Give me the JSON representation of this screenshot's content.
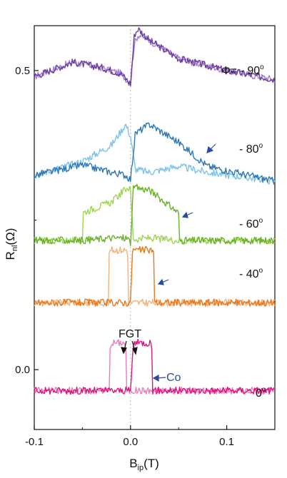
{
  "chart_data": {
    "type": "line",
    "title": "",
    "xlabel": {
      "main": "B",
      "sub": "ip",
      "unit": "(T)"
    },
    "ylabel": {
      "main": "R",
      "sub": "nl",
      "unit": "(Ω)"
    },
    "xlim": [
      -0.1,
      0.15
    ],
    "ylim": [
      -0.1,
      0.575
    ],
    "x_ticks": [
      "-0.1",
      "0.0",
      "0.1"
    ],
    "x_tick_values": [
      -0.1,
      0.0,
      0.1
    ],
    "y_ticks": [
      "0.0",
      "0.5"
    ],
    "y_tick_values": [
      0.0,
      0.5
    ],
    "grid": false,
    "series": [
      {
        "label": "Φ= - 90",
        "degree": "o",
        "color_dark": "#6a3fa0",
        "color_light": "#a77ed0",
        "x": [
          -0.1,
          -0.06,
          -0.03,
          -0.01,
          0.0,
          0.004,
          0.008,
          0.02,
          0.05,
          0.1,
          0.15
        ],
        "y_up": [
          0.49,
          0.514,
          0.505,
          0.495,
          0.478,
          0.56,
          0.57,
          0.55,
          0.52,
          0.5,
          0.485
        ],
        "y_down": [
          0.49,
          0.514,
          0.505,
          0.495,
          0.478,
          0.545,
          0.56,
          0.55,
          0.52,
          0.5,
          0.485
        ]
      },
      {
        "label": "- 80",
        "degree": "o",
        "color_dark": "#2f78b8",
        "color_light": "#7cc3ea",
        "x": [
          -0.1,
          -0.05,
          -0.02,
          -0.005,
          0.0,
          0.005,
          0.02,
          0.05,
          0.08,
          0.15
        ],
        "y_up": [
          0.325,
          0.342,
          0.33,
          0.325,
          0.318,
          0.395,
          0.41,
          0.38,
          0.34,
          0.315
        ],
        "y_down": [
          0.325,
          0.348,
          0.375,
          0.41,
          0.39,
          0.335,
          0.33,
          0.34,
          0.33,
          0.315
        ]
      },
      {
        "label": "- 60",
        "degree": "o",
        "color_dark": "#6ab128",
        "color_light": "#9fd355",
        "x": [
          -0.1,
          -0.05,
          -0.0505,
          -0.02,
          -0.003,
          0.0,
          0.003,
          0.02,
          0.05,
          0.0505,
          0.1,
          0.15
        ],
        "y_up": [
          0.216,
          0.216,
          0.216,
          0.22,
          0.22,
          0.212,
          0.305,
          0.3,
          0.262,
          0.216,
          0.216,
          0.216
        ],
        "y_down": [
          0.216,
          0.216,
          0.262,
          0.28,
          0.305,
          0.3,
          0.218,
          0.22,
          0.216,
          0.216,
          0.216,
          0.216
        ]
      },
      {
        "label": "- 40",
        "degree": "o",
        "color_dark": "#e8781e",
        "color_light": "#f4b27a",
        "x": [
          -0.1,
          -0.023,
          -0.022,
          -0.003,
          -0.002,
          0.0,
          0.002,
          0.024,
          0.025,
          0.15
        ],
        "y_up": [
          0.112,
          0.112,
          0.112,
          0.112,
          0.112,
          0.112,
          0.2,
          0.2,
          0.112,
          0.112
        ],
        "y_down": [
          0.112,
          0.112,
          0.2,
          0.2,
          0.112,
          0.112,
          0.112,
          0.112,
          0.112,
          0.112
        ]
      },
      {
        "label": "0",
        "degree": "o",
        "color_dark": "#d8177e",
        "color_light": "#ee7cbc",
        "x": [
          -0.1,
          -0.022,
          -0.021,
          -0.005,
          -0.004,
          0.0,
          0.003,
          0.022,
          0.023,
          0.15
        ],
        "y_up": [
          -0.035,
          -0.035,
          -0.035,
          -0.035,
          -0.035,
          -0.035,
          0.045,
          0.045,
          -0.035,
          -0.035
        ],
        "y_down": [
          -0.035,
          -0.035,
          0.045,
          0.045,
          -0.035,
          -0.035,
          -0.035,
          -0.035,
          -0.035,
          -0.035
        ]
      }
    ],
    "annotations": [
      {
        "text": "FGT",
        "color": "#111111"
      },
      {
        "text": "Co",
        "color": "#2c4aa0"
      }
    ],
    "vertical_guide_x": 0.0,
    "arrow_color": "#2c4aa0"
  }
}
